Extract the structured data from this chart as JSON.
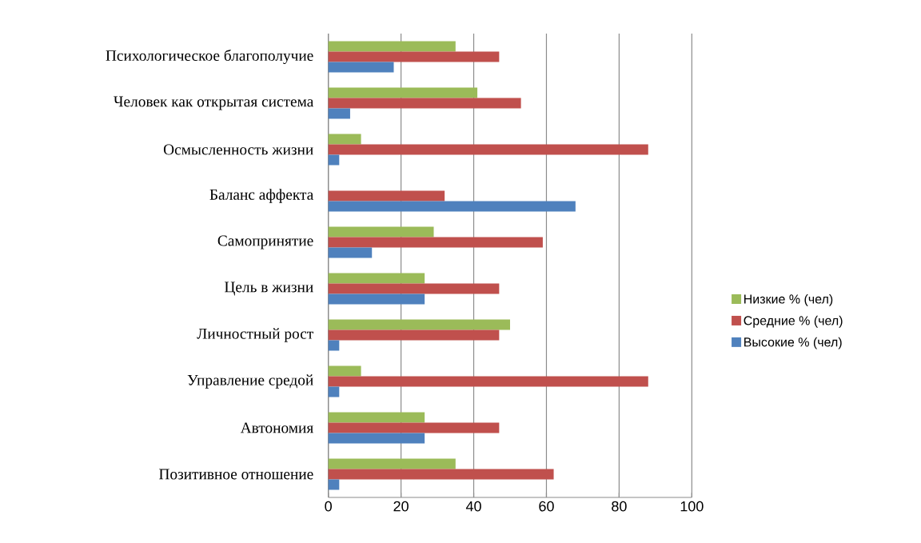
{
  "chart_data": {
    "type": "bar",
    "orientation": "horizontal",
    "categories": [
      "Психологическое благополучие",
      "Человек как открытая система",
      "Осмысленность жизни",
      "Баланс аффекта",
      "Самопринятие",
      "Цель в жизни",
      "Личностный рост",
      "Управление средой",
      "Автономия",
      "Позитивное отношение"
    ],
    "series": [
      {
        "name": "Низкие % (чел)",
        "color": "#9bbb59",
        "values": [
          35,
          41,
          9,
          0,
          29,
          26.5,
          50,
          9,
          26.5,
          35
        ]
      },
      {
        "name": "Средние % (чел)",
        "color": "#c0504d",
        "values": [
          47,
          53,
          88,
          32,
          59,
          47,
          47,
          88,
          47,
          62
        ]
      },
      {
        "name": "Высокие % (чел)",
        "color": "#4f81bd",
        "values": [
          18,
          6,
          3,
          68,
          12,
          26.5,
          3,
          3,
          26.5,
          3
        ]
      }
    ],
    "xlim": [
      0,
      100
    ],
    "xticks": [
      0,
      20,
      40,
      60,
      80,
      100
    ],
    "grid": "x",
    "legend": "right"
  }
}
